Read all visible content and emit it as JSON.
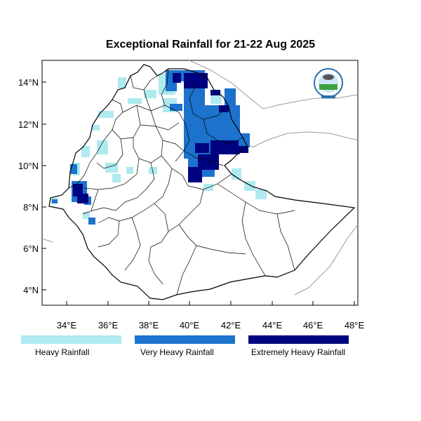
{
  "title": "Exceptional Rainfall for 21-22 Aug 2025",
  "axes": {
    "x_ticks": [
      "34°E",
      "36°E",
      "38°E",
      "40°E",
      "42°E",
      "44°E",
      "46°E",
      "48°E"
    ],
    "y_ticks": [
      "14°N",
      "12°N",
      "10°N",
      "8°N",
      "6°N",
      "4°N"
    ],
    "x_range": [
      32.7,
      48.2
    ],
    "y_range": [
      3.2,
      15.0
    ]
  },
  "legend": [
    {
      "label": "Heavy Rainfall",
      "color": "#aeeaf0"
    },
    {
      "label": "Very Heavy Rainfall",
      "color": "#1c72cc"
    },
    {
      "label": "Extremely Heavy Rainfall",
      "color": "#00037f"
    }
  ],
  "logo": {
    "icon": "meteorology-agency-logo-icon"
  }
}
